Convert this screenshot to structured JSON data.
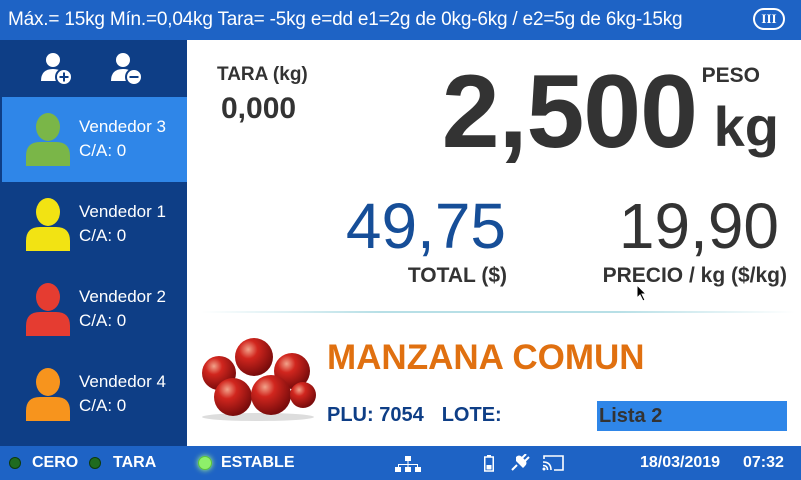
{
  "header": {
    "spec": "Máx.= 15kg  Mín.=0,04kg  Tara= -5kg  e=dd  e1=2g de 0kg-6kg / e2=5g de 6kg-15kg",
    "accuracy_class": "III"
  },
  "sidebar": {
    "add_icon": "user-add-icon",
    "remove_icon": "user-remove-icon",
    "sellers": [
      {
        "name": "Vendedor 3",
        "ca": "C/A: 0",
        "color": "#7ab648",
        "active": true
      },
      {
        "name": "Vendedor 1",
        "ca": "C/A: 0",
        "color": "#f2e313",
        "active": false
      },
      {
        "name": "Vendedor 2",
        "ca": "C/A: 0",
        "color": "#e53c31",
        "active": false
      },
      {
        "name": "Vendedor 4",
        "ca": "C/A: 0",
        "color": "#f7941d",
        "active": false
      }
    ]
  },
  "main": {
    "tara_label": "TARA (kg)",
    "tara_value": "0,000",
    "weight_value": "2,500",
    "weight_label": "PESO",
    "weight_unit": "kg",
    "total_value": "49,75",
    "total_label": "TOTAL ($)",
    "price_value": "19,90",
    "price_label": "PRECIO / kg ($/kg)",
    "product_name": "MANZANA COMUN",
    "product_image": "red-apples-image",
    "plu": "PLU: 7054",
    "lote": "LOTE:",
    "price_list": "Lista 2"
  },
  "status": {
    "cero": "CERO",
    "tara": "TARA",
    "estable": "ESTABLE",
    "network_icon": "network-icon",
    "battery_icon": "battery-icon",
    "power_icon": "power-plug-icon",
    "cast_icon": "cast-icon",
    "date": "18/03/2019",
    "time": "07:32"
  },
  "colors": {
    "bar_blue": "#1e63c5",
    "sidebar_navy": "#0e3e86",
    "active_blue": "#2f86e8",
    "product_orange": "#e07010",
    "total_blue": "#164e98"
  }
}
